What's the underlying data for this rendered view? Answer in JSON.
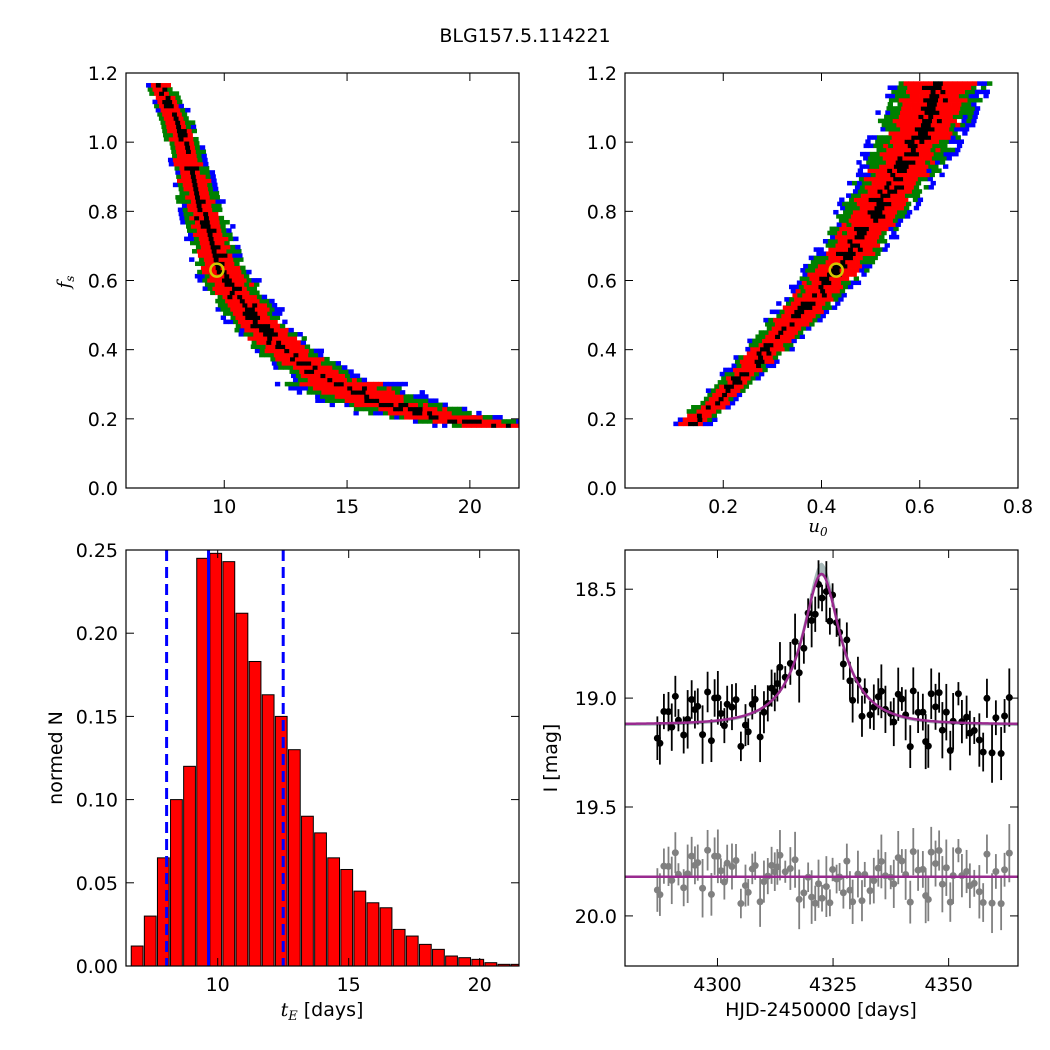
{
  "figure_title": "BLG157.5.114221",
  "colors": {
    "level1": "#000000",
    "level2": "#ff0000",
    "level3": "#008000",
    "level4": "#0000ff",
    "marker": "#d4c800",
    "hist_bar": "#ff0000",
    "vline": "#0000ff",
    "data_primary": "#000000",
    "data_secondary": "#808080",
    "model_line": "#992a8f",
    "model_band": "#5f7f7f"
  },
  "chart_data": [
    {
      "type": "heatmap",
      "panel": "fs_vs_tE",
      "xlabel": "",
      "ylabel": "f_s",
      "xlim": [
        6.0,
        22.0
      ],
      "ylim": [
        0.0,
        1.2
      ],
      "xticks": [
        "10",
        "15",
        "20"
      ],
      "yticks": [
        "0.0",
        "0.2",
        "0.4",
        "0.6",
        "0.8",
        "1.0",
        "1.2"
      ],
      "ridge": [
        [
          7.2,
          1.17
        ],
        [
          8.0,
          1.05
        ],
        [
          8.6,
          0.9
        ],
        [
          9.2,
          0.75
        ],
        [
          9.8,
          0.62
        ],
        [
          10.5,
          0.55
        ],
        [
          11.4,
          0.46
        ],
        [
          12.6,
          0.38
        ],
        [
          14.2,
          0.31
        ],
        [
          16.0,
          0.25
        ],
        [
          18.0,
          0.21
        ],
        [
          19.5,
          0.19
        ],
        [
          21.0,
          0.175
        ]
      ],
      "best_fit": [
        9.7,
        0.63
      ]
    },
    {
      "type": "heatmap",
      "panel": "fs_vs_u0",
      "xlabel": "u_0",
      "ylabel": "",
      "xlim": [
        0.0,
        0.8
      ],
      "ylim": [
        0.0,
        1.2
      ],
      "xticks": [
        "0.2",
        "0.4",
        "0.6",
        "0.8"
      ],
      "yticks": [
        "0.0",
        "0.2",
        "0.4",
        "0.6",
        "0.8",
        "1.0",
        "1.2"
      ],
      "ridge": [
        [
          0.13,
          0.18
        ],
        [
          0.18,
          0.24
        ],
        [
          0.24,
          0.33
        ],
        [
          0.3,
          0.42
        ],
        [
          0.35,
          0.5
        ],
        [
          0.4,
          0.58
        ],
        [
          0.45,
          0.67
        ],
        [
          0.5,
          0.78
        ],
        [
          0.55,
          0.9
        ],
        [
          0.6,
          1.03
        ],
        [
          0.64,
          1.17
        ]
      ],
      "best_fit": [
        0.43,
        0.63
      ]
    },
    {
      "type": "bar",
      "panel": "tE_histogram",
      "xlabel": "[days]",
      "xlabel_math": "t_E",
      "ylabel": "normed N",
      "xlim": [
        6.5,
        21.5
      ],
      "ylim": [
        0.0,
        0.25
      ],
      "xticks": [
        "10",
        "15",
        "20"
      ],
      "yticks": [
        "0.00",
        "0.05",
        "0.10",
        "0.15",
        "0.20",
        "0.25"
      ],
      "bin_start": 6.7,
      "bin_width": 0.25,
      "values": [
        0.012,
        0.03,
        0.065,
        0.1,
        0.12,
        0.245,
        0.248,
        0.243,
        0.212,
        0.183,
        0.163,
        0.15,
        0.13,
        0.09,
        0.08,
        0.065,
        0.058,
        0.045,
        0.038,
        0.035,
        0.022,
        0.018,
        0.013,
        0.01,
        0.006,
        0.005,
        0.004,
        0.002,
        0.001,
        0.001
      ],
      "median": 9.65,
      "lower": 8.05,
      "upper": 12.5
    },
    {
      "type": "scatter",
      "panel": "lightcurve",
      "xlabel": "HJD-2450000 [days]",
      "ylabel": "I [mag]",
      "xlim": [
        4280.0,
        4365.0
      ],
      "ylim": [
        20.23,
        18.32
      ],
      "xticks": [
        "4300",
        "4325",
        "4350"
      ],
      "yticks": [
        "18.5",
        "19.0",
        "19.5",
        "20.0"
      ],
      "model": {
        "t0": 4322.5,
        "tE": 9.7,
        "u0": 0.43,
        "base": 19.12,
        "peak": 18.43
      },
      "residual_offset": 19.82
    }
  ]
}
